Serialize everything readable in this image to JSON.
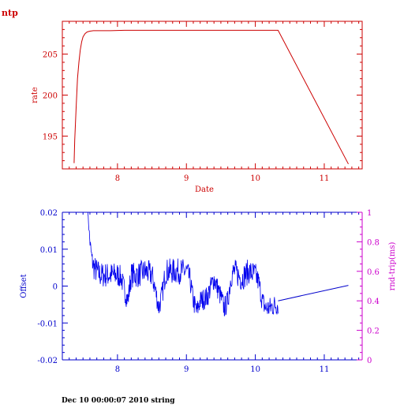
{
  "header": {
    "label": "ntp"
  },
  "footer": {
    "text": "Dec 10 00:00:07 2010 string"
  },
  "colors": {
    "top": "#cc0000",
    "bottom": "#0000cc",
    "right_axis": "#cc00cc",
    "data_line": "#0000ee"
  },
  "chart_data": [
    {
      "type": "line",
      "xlabel": "Date",
      "ylabel": "rate",
      "xlim": [
        7.2,
        11.55
      ],
      "ylim": [
        191,
        209
      ],
      "xticks": [
        8,
        9,
        10,
        11
      ],
      "yticks": [
        195,
        200,
        205
      ],
      "grid": false,
      "series": [
        {
          "x": [
            7.37,
            7.38,
            7.4,
            7.42,
            7.44,
            7.46,
            7.48,
            7.5,
            7.53,
            7.56,
            7.6,
            7.65,
            7.75,
            7.9,
            8.1,
            8.5,
            9.0,
            9.5,
            10.0,
            10.33,
            11.35
          ],
          "y": [
            191.7,
            194.5,
            198.5,
            202.0,
            204.0,
            205.5,
            206.5,
            207.1,
            207.5,
            207.7,
            207.8,
            207.85,
            207.85,
            207.85,
            207.9,
            207.9,
            207.9,
            207.9,
            207.9,
            207.9,
            191.6
          ]
        }
      ]
    },
    {
      "type": "line",
      "ylabel": "Offset",
      "ylabel_right": "rnd-trip(ms)",
      "xlim": [
        7.2,
        11.55
      ],
      "ylim": [
        -0.02,
        0.02
      ],
      "ylim_right": [
        0,
        1
      ],
      "xticks": [
        8,
        9,
        10,
        11
      ],
      "yticks": [
        -0.02,
        -0.01,
        0,
        0.01,
        0.02
      ],
      "yticks_labels": [
        "-0.02",
        "-0.01",
        "0",
        "0.01",
        "0.02"
      ],
      "yticks_right": [
        0,
        0.2,
        0.4,
        0.6,
        0.8,
        1
      ],
      "yticks_right_labels": [
        "0",
        "0.2",
        "0.4",
        "0.6",
        "0.8",
        "1"
      ],
      "grid": false,
      "series": [
        {
          "x": [
            7.57,
            7.6,
            7.63,
            7.66,
            7.7,
            7.75,
            7.8,
            7.9,
            8.0,
            8.05,
            8.1,
            8.15,
            8.2,
            8.3,
            8.4,
            8.5,
            8.55,
            8.6,
            8.65,
            8.7,
            8.8,
            8.9,
            9.0,
            9.05,
            9.1,
            9.15,
            9.2,
            9.3,
            9.4,
            9.5,
            9.55,
            9.6,
            9.65,
            9.7,
            9.8,
            9.9,
            10.0,
            10.05,
            10.1,
            10.15,
            10.2,
            10.3,
            10.33
          ],
          "y": [
            0.02,
            0.012,
            0.007,
            0.005,
            0.004,
            0.003,
            0.003,
            0.003,
            0.003,
            0.0025,
            -0.001,
            -0.004,
            0.003,
            0.003,
            0.004,
            0.003,
            -0.001,
            -0.006,
            -0.002,
            0.004,
            0.004,
            0.004,
            0.004,
            0.002,
            -0.004,
            -0.007,
            -0.004,
            -0.003,
            0.002,
            -0.003,
            -0.006,
            -0.004,
            0.003,
            0.004,
            0.002,
            0.004,
            0.003,
            0.001,
            -0.004,
            -0.006,
            -0.006,
            -0.005,
            -0.005
          ],
          "noise": [
            0.0,
            0.002,
            0.003,
            0.0035,
            0.0035,
            0.0035,
            0.0035,
            0.0035,
            0.0035,
            0.003,
            0.003,
            0.003,
            0.0035,
            0.0035,
            0.0035,
            0.0035,
            0.003,
            0.003,
            0.003,
            0.0035,
            0.0035,
            0.0035,
            0.0035,
            0.003,
            0.003,
            0.003,
            0.003,
            0.003,
            0.003,
            0.003,
            0.003,
            0.003,
            0.0035,
            0.0035,
            0.0035,
            0.0035,
            0.0035,
            0.003,
            0.003,
            0.003,
            0.003,
            0.003,
            0.003
          ]
        },
        {
          "x": [
            10.33,
            11.35
          ],
          "y": [
            -0.004,
            0.0002
          ]
        }
      ]
    }
  ]
}
